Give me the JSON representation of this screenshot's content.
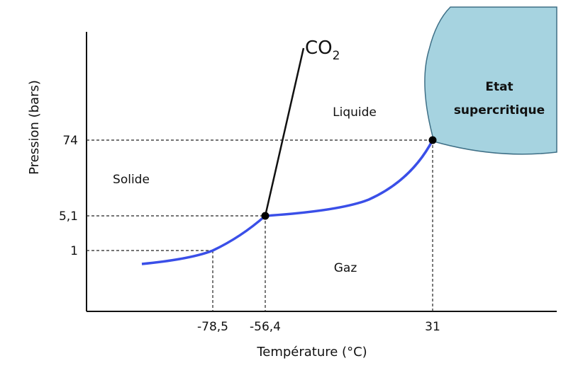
{
  "axes": {
    "x_label": "Température (°C)",
    "y_label": "Pression (bars)",
    "x_ticks": [
      "-78,5",
      "-56,4",
      "31"
    ],
    "y_ticks": [
      "74",
      "5,1",
      "1"
    ]
  },
  "curve_label": {
    "base": "CO",
    "subscript": "2"
  },
  "regions": {
    "solid": "Solide",
    "liquid": "Liquide",
    "gas": "Gaz",
    "supercritical": [
      "Etat",
      "supercritique"
    ]
  }
}
